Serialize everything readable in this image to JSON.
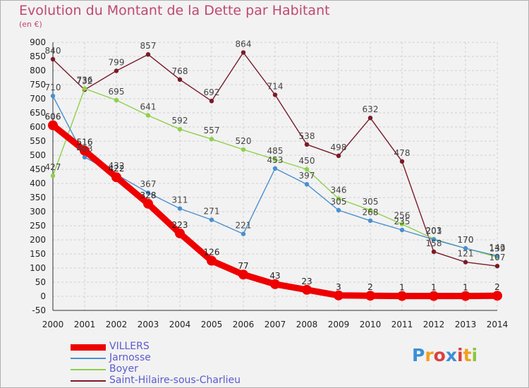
{
  "title": "Evolution du Montant de la Dette par Habitant",
  "subtitle": "(en €)",
  "logo": {
    "letters": [
      {
        "ch": "P",
        "color": "#3b8fd6"
      },
      {
        "ch": "r",
        "color": "#f0a020"
      },
      {
        "ch": "o",
        "color": "#d94040"
      },
      {
        "ch": "x",
        "color": "#3b8fd6"
      },
      {
        "ch": "i",
        "color": "#d94040"
      },
      {
        "ch": "t",
        "color": "#f0a020"
      },
      {
        "ch": "i",
        "color": "#8cc63f"
      }
    ]
  },
  "chart_data": {
    "type": "line",
    "x": [
      2000,
      2001,
      2002,
      2003,
      2004,
      2005,
      2006,
      2007,
      2008,
      2009,
      2010,
      2011,
      2012,
      2013,
      2014
    ],
    "ylim": [
      -50,
      900
    ],
    "yticks": [
      -50,
      0,
      50,
      100,
      150,
      200,
      250,
      300,
      350,
      400,
      450,
      500,
      550,
      600,
      650,
      700,
      750,
      800,
      850,
      900
    ],
    "grid": true,
    "legend_position": "bottom-left",
    "series": [
      {
        "name": "Saint-Hilaire-sous-Charlieu",
        "color": "#7a1a28",
        "values": [
          840,
          732,
          799,
          857,
          768,
          692,
          864,
          714,
          538,
          498,
          632,
          478,
          158,
          121,
          107
        ]
      },
      {
        "name": "Boyer",
        "color": "#8ed04a",
        "values": [
          427,
          736,
          695,
          641,
          592,
          557,
          520,
          485,
          450,
          346,
          305,
          256,
          203,
          170,
          139
        ]
      },
      {
        "name": "Jarnosse",
        "color": "#4a8fd0",
        "values": [
          710,
          493,
          432,
          367,
          311,
          271,
          221,
          453,
          397,
          305,
          268,
          235,
          201,
          170,
          143
        ]
      },
      {
        "name": "VILLERS",
        "color": "#ee0000",
        "values": [
          606,
          516,
          422,
          328,
          223,
          126,
          77,
          43,
          23,
          3,
          2,
          1,
          1,
          1,
          2
        ]
      }
    ]
  }
}
